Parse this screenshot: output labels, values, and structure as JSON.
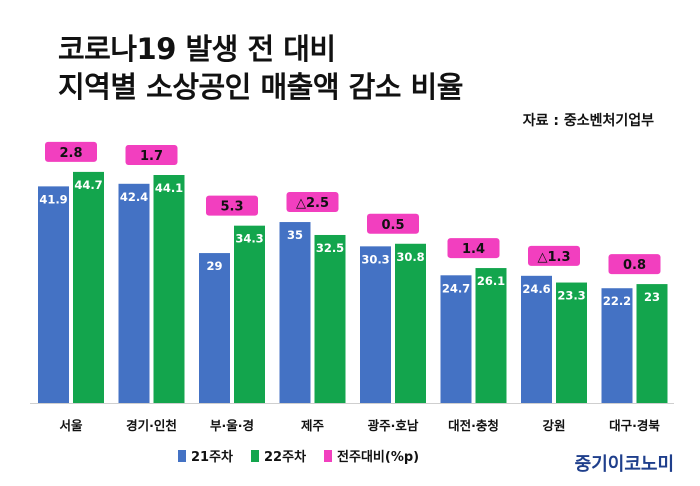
{
  "header": {
    "title_line1": "코로나19 발생 전 대비",
    "title_line2": "지역별 소상공인 매출액 감소 비율",
    "source": "자료 : 중소벤처기업부"
  },
  "brand": "중기이코노미",
  "colors": {
    "series1": "#4472c4",
    "series2": "#13a54d",
    "change_badge": "#f23fbf"
  },
  "chart_data": {
    "type": "bar",
    "categories": [
      "서울",
      "경기·인천",
      "부·울·경",
      "제주",
      "광주·호남",
      "대전·충청",
      "강원",
      "대구·경북"
    ],
    "series": [
      {
        "name": "21주차",
        "values": [
          41.9,
          42.4,
          29,
          35,
          30.3,
          24.7,
          24.6,
          22.2
        ]
      },
      {
        "name": "22주차",
        "values": [
          44.7,
          44.1,
          34.3,
          32.5,
          30.8,
          26.1,
          23.3,
          23
        ]
      }
    ],
    "change": {
      "name": "전주대비(%p)",
      "labels": [
        "2.8",
        "1.7",
        "5.3",
        "△2.5",
        "0.5",
        "1.4",
        "△1.3",
        "0.8"
      ]
    },
    "ylim": [
      0,
      50
    ],
    "grid": false,
    "legend_position": "bottom"
  }
}
